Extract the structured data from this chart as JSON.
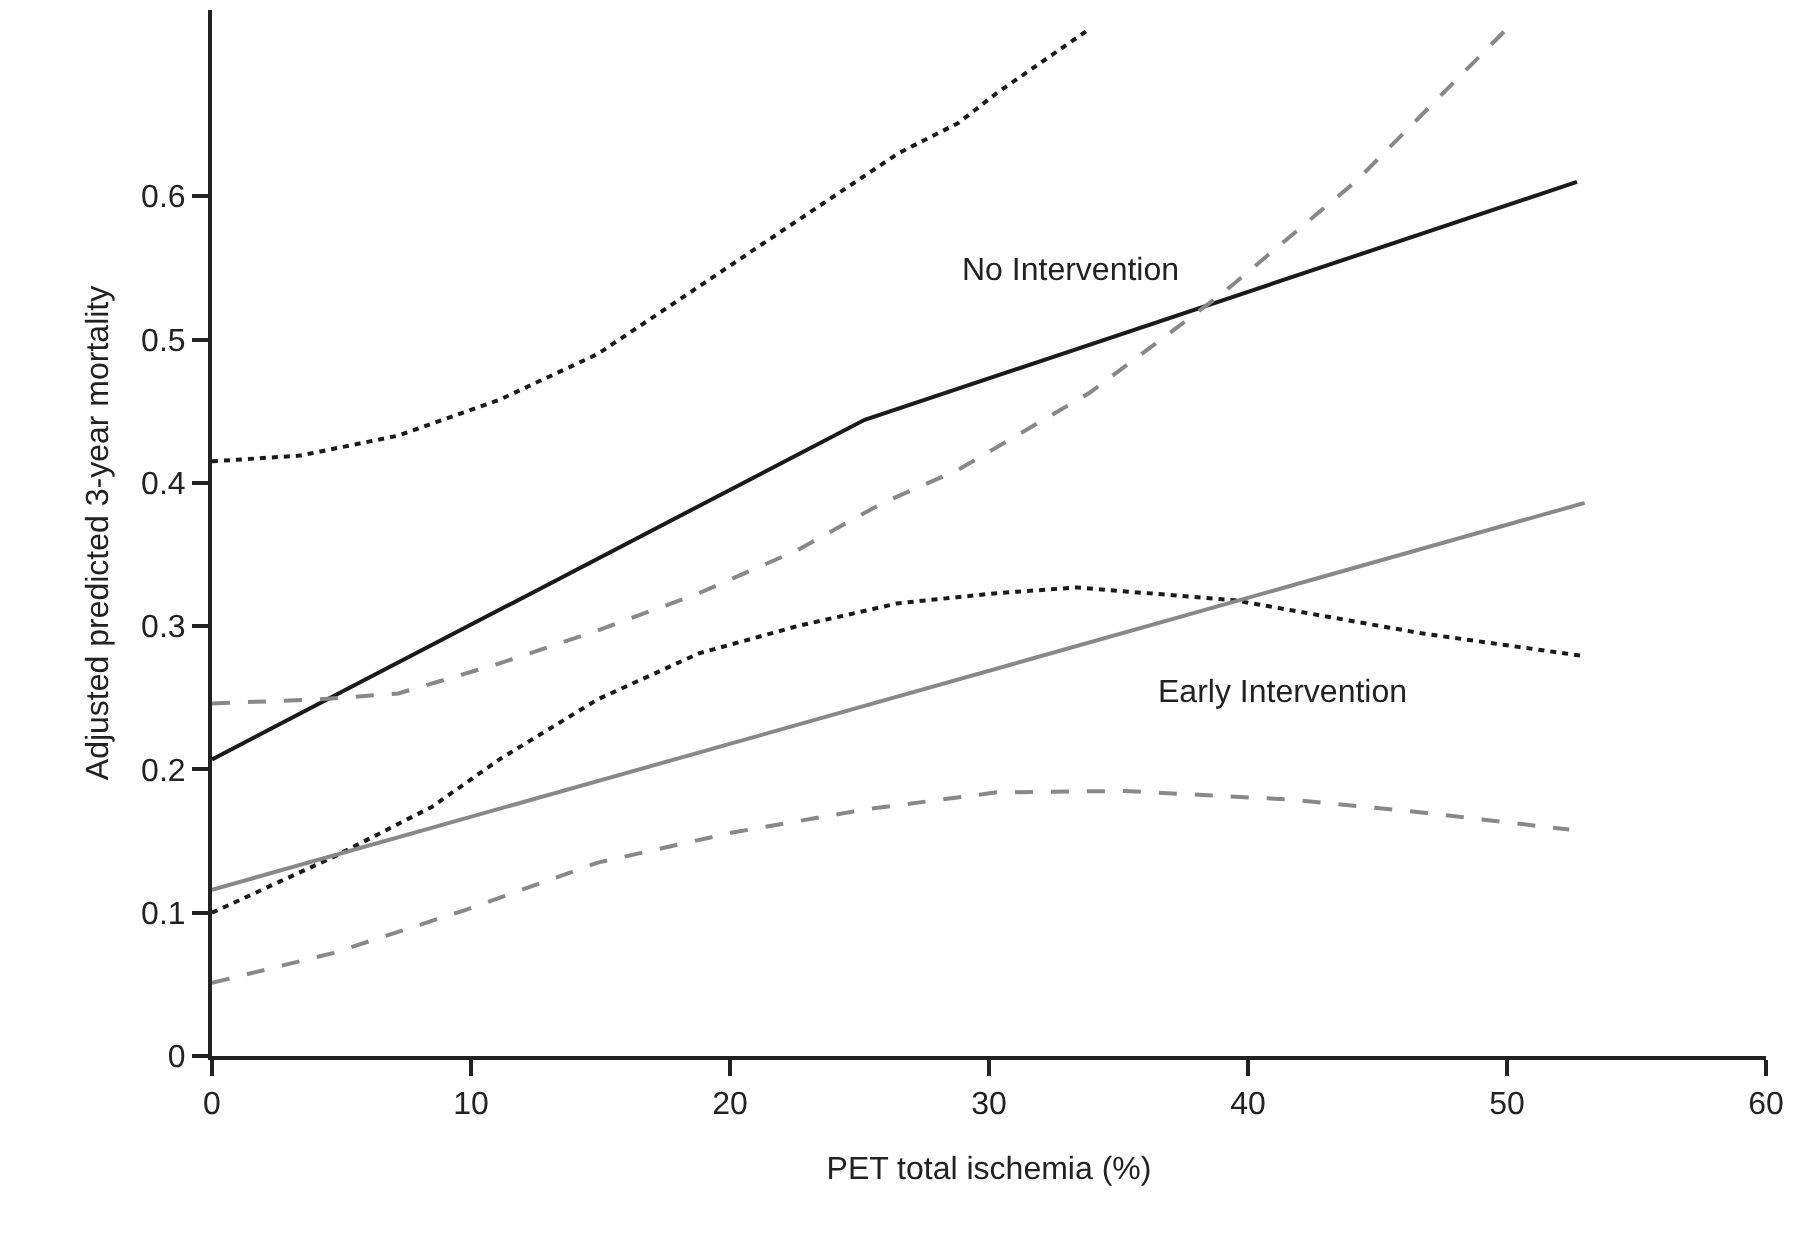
{
  "chart_data": {
    "type": "line",
    "xlabel": "PET total ischemia (%)",
    "ylabel": "Adjusted predicted 3-year mortality",
    "xlim": [
      0,
      60
    ],
    "xticks": [
      0,
      10,
      20,
      30,
      40,
      50,
      60
    ],
    "ylim": [
      0,
      0.73
    ],
    "yticks": [
      0,
      0.1,
      0.2,
      0.3,
      0.4,
      0.5,
      0.6
    ],
    "grid": false,
    "legend": false,
    "marker": "none",
    "series": [
      {
        "name": "No Intervention",
        "color": "#1a1a1a",
        "line_style": "solid",
        "x": [
          0,
          25.2,
          52.7
        ],
        "values": [
          0.207,
          0.444,
          0.61
        ]
      },
      {
        "color": "#1a1a1a",
        "line_style": "dotted",
        "x": [
          0,
          3.4,
          7.2,
          11.1,
          14.9,
          18.8,
          22.6,
          26.5,
          28.8,
          30.3,
          33.9
        ],
        "values": [
          0.415,
          0.419,
          0.433,
          0.458,
          0.49,
          0.537,
          0.583,
          0.63,
          0.651,
          0.672,
          0.717
        ]
      },
      {
        "color": "#1a1a1a",
        "line_style": "dotted",
        "x": [
          0,
          4.7,
          8.5,
          11.1,
          14.9,
          18.8,
          22.6,
          26.5,
          30.3,
          33.4,
          39.5,
          46.7,
          53
        ],
        "values": [
          0.1,
          0.139,
          0.174,
          0.207,
          0.249,
          0.281,
          0.3,
          0.316,
          0.323,
          0.327,
          0.318,
          0.295,
          0.279
        ]
      },
      {
        "name": "Early Intervention",
        "color": "#888888",
        "line_style": "solid",
        "x": [
          0,
          53
        ],
        "values": [
          0.116,
          0.386
        ]
      },
      {
        "color": "#888888",
        "line_style": "dashed",
        "x": [
          0,
          4.2,
          7.2,
          11.1,
          14.9,
          18.8,
          22.6,
          25.9,
          28.8,
          33.9,
          39,
          44.2,
          50
        ],
        "values": [
          0.246,
          0.249,
          0.253,
          0.274,
          0.297,
          0.323,
          0.353,
          0.386,
          0.409,
          0.463,
          0.532,
          0.611,
          0.717
        ]
      },
      {
        "color": "#888888",
        "line_style": "dashed",
        "x": [
          0,
          4.7,
          9.8,
          14.9,
          20.1,
          25.2,
          30.3,
          35.2,
          41.6,
          46.7,
          52.4
        ],
        "values": [
          0.051,
          0.072,
          0.102,
          0.135,
          0.156,
          0.172,
          0.184,
          0.185,
          0.179,
          0.17,
          0.158
        ]
      }
    ]
  }
}
